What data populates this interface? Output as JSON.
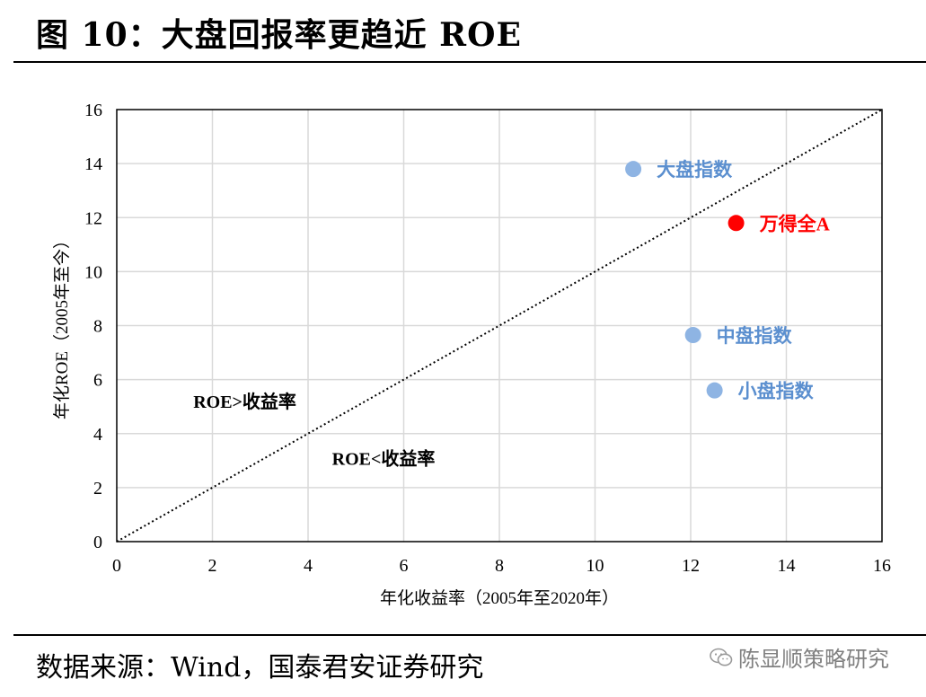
{
  "header": {
    "title": "图 10：大盘回报率更趋近 ROE"
  },
  "footer": {
    "source": "数据来源：Wind，国泰君安证券研究",
    "watermark": "陈显顺策略研究",
    "watermark_icon": "wechat-icon"
  },
  "chart_data": {
    "type": "scatter",
    "xlabel": "年化收益率（2005年至2020年）",
    "ylabel": "年化ROE（2005年至今）",
    "xlim": [
      0,
      16
    ],
    "ylim": [
      0,
      16
    ],
    "xticks": [
      "0",
      "2",
      "4",
      "6",
      "8",
      "10",
      "12",
      "14",
      "16"
    ],
    "yticks": [
      "0",
      "2",
      "4",
      "6",
      "8",
      "10",
      "12",
      "14",
      "16"
    ],
    "grid": true,
    "reference_line": {
      "from": [
        0,
        0
      ],
      "to": [
        16,
        16
      ],
      "style": "dotted"
    },
    "points": [
      {
        "label": "大盘指数",
        "x": 10.8,
        "y": 13.8,
        "color": "#8EB4E3"
      },
      {
        "label": "万得全A",
        "x": 12.95,
        "y": 11.8,
        "color": "#FF0000"
      },
      {
        "label": "中盘指数",
        "x": 12.05,
        "y": 7.65,
        "color": "#8EB4E3"
      },
      {
        "label": "小盘指数",
        "x": 12.5,
        "y": 5.6,
        "color": "#8EB4E3"
      }
    ],
    "annotations": [
      {
        "text": "ROE>收益率",
        "x": 1.6,
        "y": 4.95
      },
      {
        "text": "ROE<收益率",
        "x": 4.5,
        "y": 2.85
      }
    ]
  }
}
